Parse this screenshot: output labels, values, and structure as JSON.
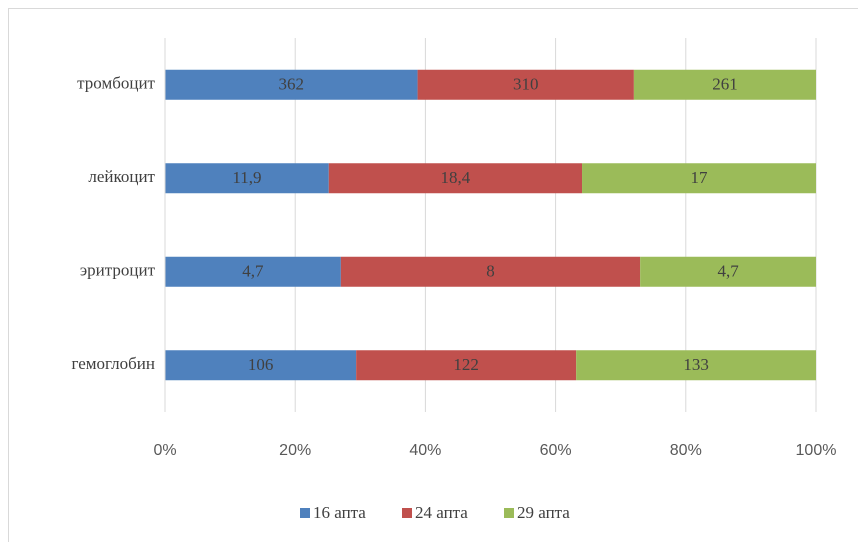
{
  "chart_data": {
    "type": "bar",
    "orientation": "horizontal",
    "stacking": "percent",
    "categories": [
      "тромбоцит",
      "лейкоцит",
      "эритроцит",
      "гемоглобин"
    ],
    "series": [
      {
        "name": "16 апта",
        "color": "#4f81bd",
        "values": [
          362,
          11.9,
          4.7,
          106
        ],
        "value_labels": [
          "362",
          "11,9",
          "4,7",
          "106"
        ]
      },
      {
        "name": "24 апта",
        "color": "#c0504d",
        "values": [
          310,
          18.4,
          8,
          122
        ],
        "value_labels": [
          "310",
          "18,4",
          "8",
          "122"
        ]
      },
      {
        "name": "29 апта",
        "color": "#9bbb59",
        "values": [
          261,
          17,
          4.7,
          133
        ],
        "value_labels": [
          "261",
          "17",
          "4,7",
          "133"
        ]
      }
    ],
    "xlim": [
      0,
      100
    ],
    "xticks": [
      {
        "value": 0,
        "label": "0%"
      },
      {
        "value": 20,
        "label": "20%"
      },
      {
        "value": 40,
        "label": "40%"
      },
      {
        "value": 60,
        "label": "60%"
      },
      {
        "value": 80,
        "label": "80%"
      },
      {
        "value": 100,
        "label": "100%"
      }
    ],
    "grid": true,
    "legend": "bottom"
  }
}
